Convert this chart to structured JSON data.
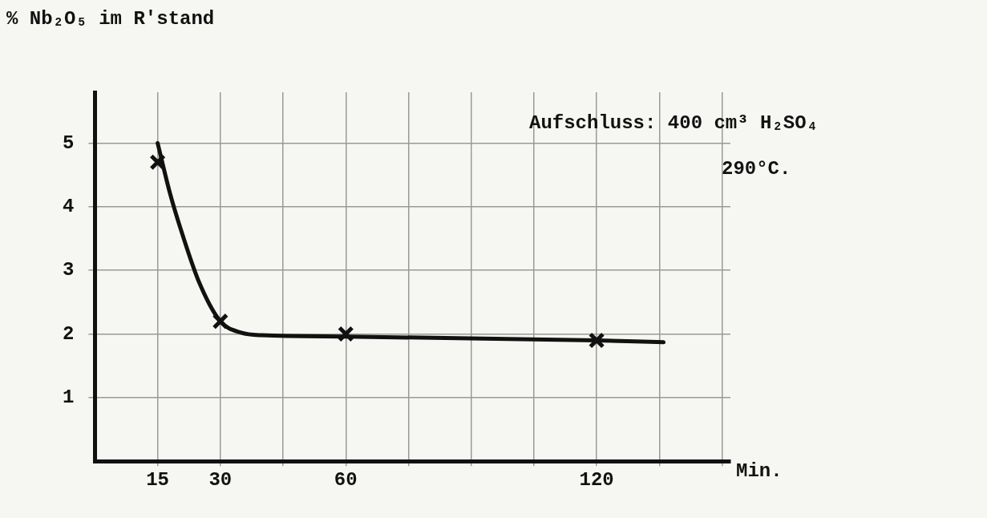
{
  "chart_data": {
    "type": "scatter",
    "xlabel": "Min.",
    "ylabel": "% Nb₂O₅ im R'stand",
    "annotations": [
      "Aufschluss: 400 cm³ H₂SO₄",
      "290°C."
    ],
    "xlim": [
      0,
      152
    ],
    "xticks": [
      15,
      30,
      {
        "value": 45,
        "label": null
      },
      60,
      {
        "value": 75,
        "label": null
      },
      {
        "value": 90,
        "label": null
      },
      {
        "value": 105,
        "label": null
      },
      120,
      {
        "value": 135,
        "label": null
      },
      {
        "value": 150,
        "label": null
      }
    ],
    "ylim": [
      0,
      5.8
    ],
    "yticks": [
      1,
      2,
      3,
      4,
      5
    ],
    "grid": true,
    "marker": "cross",
    "series": [
      {
        "color": "#111111",
        "x": [
          15,
          30,
          60,
          120
        ],
        "values": [
          4.7,
          2.2,
          2.0,
          1.9
        ]
      },
      {
        "type": "line",
        "color": "#111111",
        "marker": "none",
        "x": [
          15,
          18,
          21,
          25,
          30,
          35,
          40,
          60,
          120,
          136
        ],
        "values": [
          5.0,
          4.2,
          3.55,
          2.8,
          2.2,
          2.02,
          1.98,
          1.96,
          1.9,
          1.87
        ]
      }
    ]
  }
}
